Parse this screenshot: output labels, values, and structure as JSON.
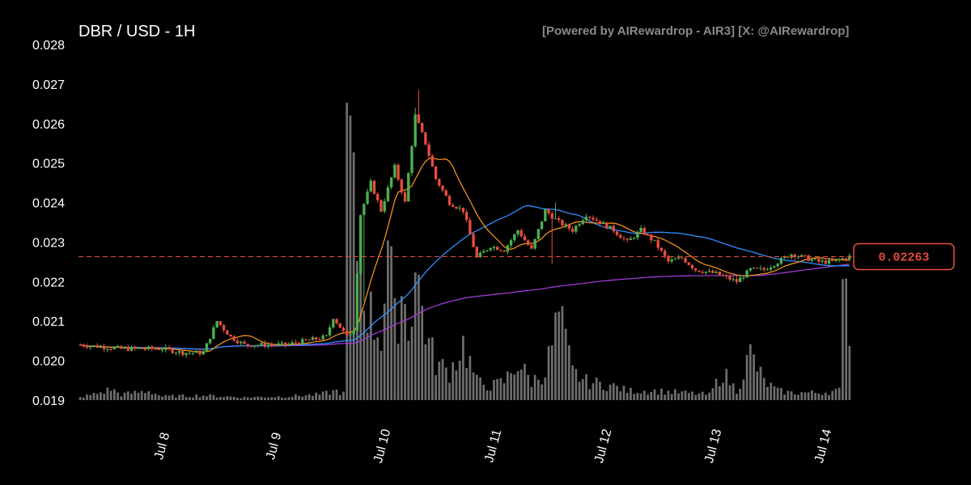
{
  "chart_data": {
    "type": "candlestick",
    "title": "DBR / USD - 1H",
    "credit": "[Powered by AIRewardrop - AIR3] [X: @AIRewardrop]",
    "ylim": [
      0.019,
      0.028
    ],
    "y_ticks": [
      "0.028",
      "0.027",
      "0.026",
      "0.025",
      "0.024",
      "0.023",
      "0.022",
      "0.021",
      "0.020",
      "0.019"
    ],
    "x_ticks": [
      "Jul 8",
      "Jul 9",
      "Jul 10",
      "Jul 11",
      "Jul 12",
      "Jul 13",
      "Jul 14"
    ],
    "grid": false,
    "current_price": 0.02263,
    "current_price_label": "0.02263",
    "colors": {
      "up": "#4caf50",
      "down": "#e74c3c",
      "volume": "#808080",
      "ma_fast": "#ff9a1f",
      "ma_mid": "#2f8fff",
      "ma_slow": "#a23ad6",
      "price_line": "#e74c3c"
    },
    "close_anchors": [
      [
        0,
        0.0204
      ],
      [
        12,
        0.0203
      ],
      [
        24,
        0.0203
      ],
      [
        30,
        0.0202
      ],
      [
        36,
        0.0202
      ],
      [
        40,
        0.021
      ],
      [
        44,
        0.0206
      ],
      [
        48,
        0.0204
      ],
      [
        60,
        0.0204
      ],
      [
        66,
        0.0205
      ],
      [
        72,
        0.0206
      ],
      [
        74,
        0.0211
      ],
      [
        78,
        0.0206
      ],
      [
        80,
        0.0208
      ],
      [
        82,
        0.0237
      ],
      [
        85,
        0.0245
      ],
      [
        88,
        0.0238
      ],
      [
        92,
        0.0249
      ],
      [
        95,
        0.024
      ],
      [
        98,
        0.0262
      ],
      [
        101,
        0.0255
      ],
      [
        104,
        0.0246
      ],
      [
        108,
        0.024
      ],
      [
        112,
        0.0238
      ],
      [
        116,
        0.0226
      ],
      [
        120,
        0.0229
      ],
      [
        124,
        0.0228
      ],
      [
        128,
        0.0233
      ],
      [
        132,
        0.0228
      ],
      [
        136,
        0.0238
      ],
      [
        140,
        0.0235
      ],
      [
        144,
        0.0233
      ],
      [
        148,
        0.0237
      ],
      [
        156,
        0.0233
      ],
      [
        160,
        0.023
      ],
      [
        164,
        0.0233
      ],
      [
        168,
        0.023
      ],
      [
        172,
        0.0225
      ],
      [
        176,
        0.0226
      ],
      [
        180,
        0.0223
      ],
      [
        186,
        0.0222
      ],
      [
        192,
        0.022
      ],
      [
        196,
        0.0223
      ],
      [
        200,
        0.0223
      ],
      [
        204,
        0.0225
      ],
      [
        208,
        0.0227
      ],
      [
        212,
        0.0226
      ],
      [
        216,
        0.0225
      ],
      [
        220,
        0.0225
      ],
      [
        225,
        0.02263
      ]
    ],
    "volume_anchors": [
      [
        0,
        0.3
      ],
      [
        6,
        0.8
      ],
      [
        9,
        1.2
      ],
      [
        12,
        0.6
      ],
      [
        20,
        1.0
      ],
      [
        24,
        0.4
      ],
      [
        36,
        0.5
      ],
      [
        48,
        0.3
      ],
      [
        60,
        0.4
      ],
      [
        70,
        0.6
      ],
      [
        75,
        1.0
      ],
      [
        77,
        0.7
      ],
      [
        78,
        32.0
      ],
      [
        80,
        20.0
      ],
      [
        82,
        14.0
      ],
      [
        85,
        9.0
      ],
      [
        88,
        7.0
      ],
      [
        90,
        17.0
      ],
      [
        92,
        8.0
      ],
      [
        94,
        12.0
      ],
      [
        96,
        8.0
      ],
      [
        98,
        14.0
      ],
      [
        100,
        10.0
      ],
      [
        102,
        6.0
      ],
      [
        104,
        4.0
      ],
      [
        108,
        3.0
      ],
      [
        112,
        6.0
      ],
      [
        116,
        2.0
      ],
      [
        120,
        1.5
      ],
      [
        124,
        2.0
      ],
      [
        128,
        4.0
      ],
      [
        132,
        2.0
      ],
      [
        136,
        3.0
      ],
      [
        140,
        9.0
      ],
      [
        144,
        3.0
      ],
      [
        148,
        2.0
      ],
      [
        156,
        1.5
      ],
      [
        160,
        1.0
      ],
      [
        168,
        1.0
      ],
      [
        176,
        0.8
      ],
      [
        184,
        0.6
      ],
      [
        188,
        3.0
      ],
      [
        192,
        1.0
      ],
      [
        196,
        5.0
      ],
      [
        200,
        2.0
      ],
      [
        204,
        1.0
      ],
      [
        208,
        0.8
      ],
      [
        216,
        0.8
      ],
      [
        222,
        1.0
      ],
      [
        224,
        20.0
      ],
      [
        225,
        6.0
      ]
    ]
  }
}
